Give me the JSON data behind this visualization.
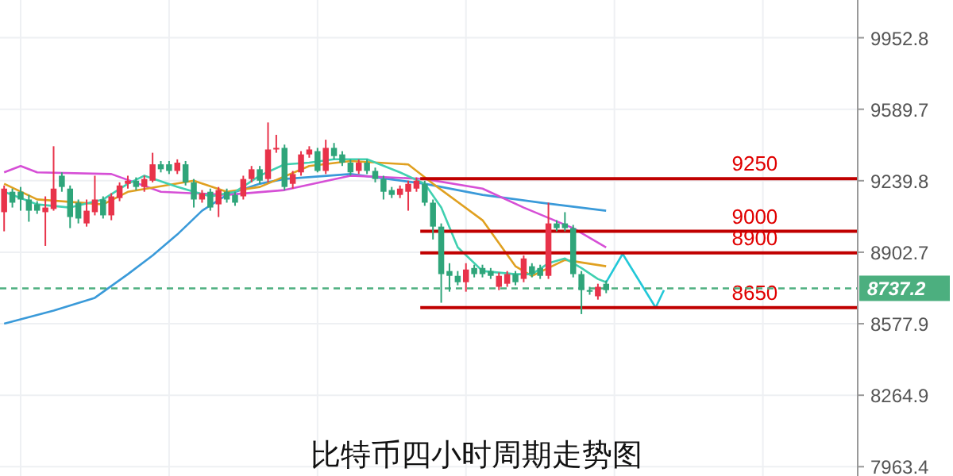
{
  "chart_data": {
    "type": "candlestick",
    "title": "比特币四小时周期走势图",
    "categories": [
      null,
      null,
      null,
      null,
      null,
      null,
      null,
      null,
      null,
      null,
      null,
      null,
      null,
      null,
      null,
      null,
      null,
      null,
      null,
      null,
      null,
      null,
      null,
      null,
      null,
      null,
      null,
      null,
      null,
      null,
      null,
      null,
      null,
      null,
      null,
      null,
      null,
      null,
      null,
      null,
      null,
      null,
      null,
      null,
      null,
      null,
      null,
      null,
      null,
      null,
      null,
      null,
      null,
      null,
      null,
      null,
      null,
      null,
      null,
      null,
      null,
      null,
      null,
      null,
      null,
      null,
      null,
      null,
      null,
      null,
      null,
      null,
      null,
      null,
      null,
      null,
      null,
      null,
      null,
      null,
      null,
      null,
      null,
      null,
      null,
      null,
      null,
      null,
      null,
      null,
      null,
      null,
      null,
      null,
      null,
      null,
      null,
      null,
      null,
      null,
      null,
      null,
      null,
      null
    ],
    "ohlc": [
      [
        9090,
        9217,
        9000,
        9202
      ],
      [
        9187,
        9202,
        9112,
        9135
      ],
      [
        9187,
        9210,
        9097,
        9150
      ],
      [
        9150,
        9172,
        9045,
        9097
      ],
      [
        9127,
        9142,
        9082,
        9097
      ],
      [
        9090,
        9165,
        8932,
        9112
      ],
      [
        9105,
        9407,
        9097,
        9202
      ],
      [
        9264,
        9280,
        9187,
        9210
      ],
      [
        9202,
        9217,
        9015,
        9067
      ],
      [
        9135,
        9150,
        9037,
        9060
      ],
      [
        9037,
        9150,
        9022,
        9097
      ],
      [
        9090,
        9264,
        9075,
        9150
      ],
      [
        9150,
        9165,
        9060,
        9075
      ],
      [
        9075,
        9180,
        9052,
        9165
      ],
      [
        9157,
        9232,
        9142,
        9217
      ],
      [
        9225,
        9264,
        9202,
        9240
      ],
      [
        9240,
        9256,
        9195,
        9210
      ],
      [
        9210,
        9264,
        9187,
        9248
      ],
      [
        9240,
        9375,
        9232,
        9319
      ],
      [
        9319,
        9335,
        9280,
        9295
      ],
      [
        9319,
        9335,
        9272,
        9287
      ],
      [
        9287,
        9343,
        9272,
        9327
      ],
      [
        9319,
        9335,
        9217,
        9232
      ],
      [
        9232,
        9248,
        9112,
        9150
      ],
      [
        9150,
        9195,
        9135,
        9180
      ],
      [
        9187,
        9202,
        9097,
        9112
      ],
      [
        9127,
        9210,
        9067,
        9195
      ],
      [
        9187,
        9202,
        9135,
        9150
      ],
      [
        9172,
        9187,
        9120,
        9135
      ],
      [
        9165,
        9264,
        9150,
        9248
      ],
      [
        9248,
        9311,
        9232,
        9295
      ],
      [
        9295,
        9311,
        9225,
        9240
      ],
      [
        9248,
        9524,
        9232,
        9391
      ],
      [
        9391,
        9463,
        9375,
        9399
      ],
      [
        9399,
        9415,
        9195,
        9210
      ],
      [
        9225,
        9287,
        9202,
        9272
      ],
      [
        9280,
        9383,
        9264,
        9367
      ],
      [
        9367,
        9407,
        9351,
        9391
      ],
      [
        9383,
        9399,
        9280,
        9287
      ],
      [
        9287,
        9439,
        9272,
        9399
      ],
      [
        9399,
        9423,
        9343,
        9359
      ],
      [
        9367,
        9383,
        9311,
        9327
      ],
      [
        9327,
        9343,
        9264,
        9280
      ],
      [
        9287,
        9343,
        9272,
        9327
      ],
      [
        9327,
        9343,
        9272,
        9287
      ],
      [
        9287,
        9303,
        9232,
        9248
      ],
      [
        9248,
        9264,
        9150,
        9187
      ],
      [
        9195,
        9210,
        9157,
        9172
      ],
      [
        9172,
        9217,
        9157,
        9202
      ],
      [
        9187,
        9240,
        9097,
        9225
      ],
      [
        9202,
        9256,
        9187,
        9240
      ],
      [
        9225,
        9240,
        9120,
        9135
      ],
      [
        9135,
        9150,
        8962,
        9022
      ],
      [
        9022,
        9037,
        8672,
        8802
      ],
      [
        8816,
        8852,
        8722,
        8794
      ],
      [
        8794,
        8816,
        8751,
        8765
      ],
      [
        8765,
        8852,
        8722,
        8823
      ],
      [
        8830,
        8845,
        8787,
        8802
      ],
      [
        8830,
        8845,
        8787,
        8802
      ],
      [
        8816,
        8830,
        8780,
        8794
      ],
      [
        8744,
        8809,
        8729,
        8794
      ],
      [
        8758,
        8816,
        8744,
        8802
      ],
      [
        8802,
        8816,
        8751,
        8765
      ],
      [
        8780,
        8888,
        8765,
        8874
      ],
      [
        8838,
        8852,
        8787,
        8802
      ],
      [
        8830,
        8845,
        8780,
        8794
      ],
      [
        8794,
        9135,
        8780,
        9037
      ],
      [
        9037,
        9052,
        9000,
        9015
      ],
      [
        9037,
        9090,
        9000,
        9015
      ],
      [
        9015,
        9030,
        8787,
        8802
      ],
      [
        8802,
        8816,
        8621,
        8729
      ],
      [
        8729,
        8744,
        8708,
        8722
      ],
      [
        8701,
        8758,
        8686,
        8744
      ],
      [
        8758,
        8773,
        8715,
        8729
      ],
      null,
      null,
      null,
      null,
      null,
      null,
      null,
      null,
      null,
      null,
      null,
      null,
      null,
      null,
      null,
      null,
      null,
      null,
      null,
      null,
      null,
      null,
      null,
      null,
      null,
      null,
      null,
      null,
      null,
      null
    ],
    "series": [
      {
        "type": "line",
        "color": "#3a9ad9",
        "values": [
          8578,
          null,
          null,
          null,
          null,
          null,
          8636,
          null,
          null,
          null,
          null,
          8694,
          null,
          null,
          null,
          8802,
          null,
          null,
          8888,
          null,
          null,
          8985,
          null,
          null,
          9097,
          null,
          null,
          9172,
          null,
          null,
          null,
          9225,
          null,
          null,
          9248,
          null,
          null,
          null,
          null,
          null,
          null,
          null,
          9272,
          null,
          null,
          null,
          null,
          null,
          null,
          null,
          null,
          9225,
          null,
          null,
          null,
          null,
          null,
          null,
          9172,
          null,
          null,
          null,
          null,
          null,
          null,
          9135,
          null,
          null,
          null,
          null,
          null,
          null,
          null,
          9097,
          null,
          null,
          null,
          null,
          null,
          null,
          null,
          null,
          null,
          null,
          null,
          null,
          null,
          null,
          null,
          null,
          null,
          null,
          null,
          null,
          null,
          null,
          null,
          null,
          null,
          null,
          null,
          null,
          null,
          null
        ]
      },
      {
        "type": "line",
        "color": "#d64fd6",
        "values": [
          9280,
          null,
          9311,
          null,
          9280,
          null,
          null,
          null,
          null,
          null,
          null,
          null,
          null,
          9272,
          null,
          null,
          null,
          null,
          null,
          9187,
          null,
          null,
          null,
          null,
          null,
          null,
          null,
          9172,
          null,
          null,
          null,
          null,
          null,
          null,
          9195,
          null,
          null,
          null,
          null,
          null,
          null,
          null,
          9264,
          null,
          null,
          null,
          null,
          null,
          null,
          null,
          null,
          9248,
          null,
          null,
          null,
          null,
          null,
          null,
          9202,
          null,
          null,
          null,
          null,
          9112,
          null,
          null,
          null,
          null,
          null,
          9015,
          null,
          null,
          null,
          8925,
          null,
          null,
          null,
          null,
          null,
          null,
          null,
          null,
          null,
          null,
          null,
          null,
          null,
          null,
          null,
          null,
          null,
          null,
          null,
          null,
          null,
          null,
          null,
          null,
          null,
          null,
          null,
          null,
          null,
          null
        ]
      },
      {
        "type": "line",
        "color": "#e0a020",
        "values": [
          9225,
          null,
          null,
          null,
          9150,
          null,
          null,
          null,
          null,
          null,
          null,
          null,
          9127,
          null,
          null,
          9187,
          null,
          null,
          null,
          null,
          null,
          null,
          null,
          9240,
          null,
          null,
          null,
          9187,
          null,
          null,
          null,
          9210,
          null,
          null,
          null,
          null,
          null,
          9311,
          null,
          null,
          null,
          null,
          9335,
          null,
          null,
          null,
          null,
          null,
          null,
          9319,
          null,
          null,
          9225,
          null,
          null,
          null,
          null,
          null,
          9052,
          null,
          null,
          null,
          8838,
          null,
          8794,
          null,
          null,
          null,
          8867,
          null,
          null,
          null,
          null,
          8838,
          null,
          null,
          null,
          null,
          null,
          null,
          null,
          null,
          null,
          null,
          null,
          null,
          null,
          null,
          null,
          null,
          null,
          null,
          null,
          null,
          null,
          null,
          null,
          null,
          null,
          null,
          null,
          null,
          null,
          null
        ]
      },
      {
        "type": "line",
        "color": "#40d0b0",
        "values": [
          9187,
          null,
          null,
          null,
          9127,
          null,
          null,
          null,
          9112,
          null,
          null,
          null,
          9150,
          null,
          null,
          9225,
          null,
          9264,
          null,
          null,
          null,
          9210,
          null,
          null,
          null,
          9165,
          null,
          null,
          9187,
          null,
          null,
          9264,
          null,
          null,
          9319,
          null,
          null,
          9327,
          null,
          null,
          9343,
          null,
          null,
          null,
          9343,
          null,
          null,
          null,
          9280,
          null,
          null,
          9225,
          null,
          9112,
          null,
          8925,
          null,
          null,
          8816,
          null,
          null,
          null,
          8802,
          null,
          8802,
          null,
          8852,
          null,
          8874,
          null,
          8830,
          null,
          8780,
          8765,
          null,
          null,
          null,
          null,
          null,
          null,
          null,
          null,
          null,
          null,
          null,
          null,
          null,
          null,
          null,
          null,
          null,
          null,
          null,
          null,
          null,
          null,
          null,
          null,
          null,
          null,
          null,
          null,
          null,
          null
        ]
      },
      {
        "type": "line",
        "color": "#22c8d8",
        "values": [
          null,
          null,
          null,
          null,
          null,
          null,
          null,
          null,
          null,
          null,
          null,
          null,
          null,
          null,
          null,
          null,
          null,
          null,
          null,
          null,
          null,
          null,
          null,
          null,
          null,
          null,
          null,
          null,
          null,
          null,
          null,
          null,
          null,
          null,
          null,
          null,
          null,
          null,
          null,
          null,
          null,
          null,
          null,
          null,
          null,
          null,
          null,
          null,
          null,
          null,
          null,
          null,
          null,
          null,
          null,
          null,
          null,
          null,
          null,
          null,
          null,
          null,
          null,
          null,
          null,
          null,
          null,
          null,
          null,
          null,
          null,
          null,
          null,
          8765,
          null,
          8895,
          null,
          null,
          null,
          8650,
          8729,
          null,
          null,
          null,
          null,
          null,
          null,
          null,
          null,
          null,
          null,
          null,
          null,
          null,
          null,
          null,
          null,
          null,
          null,
          null,
          null,
          null,
          null,
          null
        ]
      }
    ],
    "ylim": [
      7925,
      10150
    ],
    "yticks": [
      7963.4,
      8264.9,
      8577.9,
      8902.7,
      9239.8,
      9589.7,
      9952.8
    ],
    "log": true,
    "grid": true,
    "tick_labels": "y",
    "ref_lines": [
      {
        "axis": "y",
        "value": 9250,
        "label": "9250",
        "color": "#c00000"
      },
      {
        "axis": "y",
        "value": 9000,
        "label": "9000",
        "color": "#c00000"
      },
      {
        "axis": "y",
        "value": 8900,
        "label": "8900",
        "color": "#c00000"
      },
      {
        "axis": "y",
        "value": 8650,
        "label": "8650",
        "color": "#c00000"
      },
      {
        "axis": "y",
        "value": 8737.2,
        "label": "8737.2",
        "color": "#4caf7f",
        "line_style": "dashed"
      }
    ]
  }
}
